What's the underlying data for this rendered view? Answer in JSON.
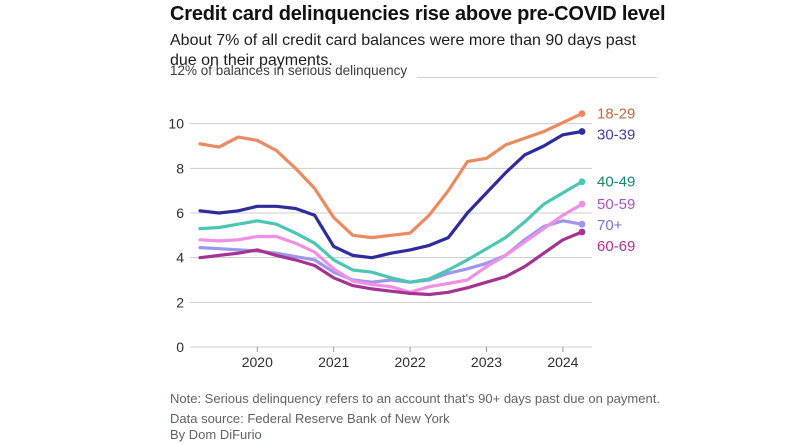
{
  "header": {
    "title": "Credit card delinquencies rise above pre-COVID level",
    "subtitle": "About 7% of all credit card balances were more than 90 days past due on their payments."
  },
  "chart": {
    "y_axis_label": "12% of balances in serious delinquency",
    "grid_color": "#cccccc",
    "tick_color": "#999999",
    "axis_text_color": "#2e2e2e"
  },
  "chart_data": {
    "type": "line",
    "x": [
      "2019 Q2",
      "2019 Q3",
      "2019 Q4",
      "2020 Q1",
      "2020 Q2",
      "2020 Q3",
      "2020 Q4",
      "2021 Q1",
      "2021 Q2",
      "2021 Q3",
      "2021 Q4",
      "2022 Q1",
      "2022 Q2",
      "2022 Q3",
      "2022 Q4",
      "2023 Q1",
      "2023 Q2",
      "2023 Q3",
      "2023 Q4",
      "2024 Q1",
      "2024 Q2"
    ],
    "x_tick_labels": [
      "2020",
      "2021",
      "2022",
      "2023",
      "2024"
    ],
    "y_ticks": [
      0,
      2,
      4,
      6,
      8,
      10,
      12
    ],
    "ylim": [
      0,
      12
    ],
    "y_unit": "% of balances in serious delinquency",
    "legend_position": "right-end-of-line",
    "grid": true,
    "series": [
      {
        "name": "18-29",
        "line_color": "#EB8A5E",
        "label_color": "#C2683E",
        "values": [
          9.1,
          8.95,
          9.4,
          9.25,
          8.8,
          8.0,
          7.1,
          5.8,
          5.0,
          4.9,
          5.0,
          5.1,
          5.9,
          7.0,
          8.3,
          8.45,
          9.05,
          9.35,
          9.65,
          10.05,
          10.45
        ]
      },
      {
        "name": "30-39",
        "line_color": "#2E2B9D",
        "label_color": "#3F3F9F",
        "values": [
          6.1,
          6.0,
          6.1,
          6.3,
          6.3,
          6.2,
          5.9,
          4.5,
          4.1,
          4.0,
          4.2,
          4.35,
          4.55,
          4.9,
          6.0,
          6.9,
          7.8,
          8.6,
          9.0,
          9.5,
          9.65
        ]
      },
      {
        "name": "40-49",
        "line_color": "#4AC6B2",
        "label_color": "#158671",
        "values": [
          5.3,
          5.35,
          5.5,
          5.65,
          5.5,
          5.1,
          4.65,
          3.9,
          3.45,
          3.35,
          3.1,
          2.9,
          3.05,
          3.45,
          3.9,
          4.4,
          4.9,
          5.6,
          6.4,
          6.9,
          7.4
        ]
      },
      {
        "name": "50-59",
        "line_color": "#EF8FE5",
        "label_color": "#AB53C4",
        "values": [
          4.8,
          4.75,
          4.8,
          4.95,
          4.95,
          4.65,
          4.25,
          3.5,
          2.95,
          2.8,
          2.7,
          2.45,
          2.7,
          2.85,
          3.0,
          3.6,
          4.1,
          4.7,
          5.3,
          5.9,
          6.4
        ]
      },
      {
        "name": "70+",
        "line_color": "#9D96EF",
        "label_color": "#7A6FD8",
        "values": [
          4.45,
          4.4,
          4.35,
          4.3,
          4.2,
          4.05,
          3.9,
          3.35,
          3.0,
          2.9,
          3.0,
          2.9,
          3.0,
          3.3,
          3.5,
          3.75,
          4.1,
          4.8,
          5.4,
          5.65,
          5.5
        ]
      },
      {
        "name": "60-69",
        "line_color": "#A43391",
        "label_color": "#B8308F",
        "values": [
          4.0,
          4.1,
          4.2,
          4.35,
          4.1,
          3.9,
          3.65,
          3.1,
          2.75,
          2.6,
          2.5,
          2.4,
          2.35,
          2.45,
          2.65,
          2.9,
          3.15,
          3.6,
          4.2,
          4.8,
          5.15
        ]
      }
    ]
  },
  "footer": {
    "note": "Note: Serious delinquency refers to an account that's 90+ days past due on payment.",
    "source": "Data source: Federal Reserve Bank of New York",
    "byline": "By Dom DiFurio"
  }
}
